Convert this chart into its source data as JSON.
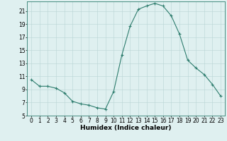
{
  "x": [
    0,
    1,
    2,
    3,
    4,
    5,
    6,
    7,
    8,
    9,
    10,
    11,
    12,
    13,
    14,
    15,
    16,
    17,
    18,
    19,
    20,
    21,
    22,
    23
  ],
  "y": [
    10.5,
    9.5,
    9.5,
    9.2,
    8.5,
    7.2,
    6.8,
    6.6,
    6.2,
    6.0,
    8.7,
    14.3,
    18.7,
    21.3,
    21.8,
    22.2,
    21.8,
    20.3,
    17.5,
    13.5,
    12.3,
    11.3,
    9.8,
    8.0
  ],
  "line_color": "#2e7d6e",
  "marker": "+",
  "marker_size": 3,
  "marker_lw": 0.8,
  "line_width": 0.8,
  "bg_color": "#dff0f0",
  "grid_color": "#b8d4d4",
  "xlabel": "Humidex (Indice chaleur)",
  "xlim": [
    -0.5,
    23.5
  ],
  "ylim": [
    5,
    22.5
  ],
  "yticks": [
    5,
    7,
    9,
    11,
    13,
    15,
    17,
    19,
    21
  ],
  "xticks": [
    0,
    1,
    2,
    3,
    4,
    5,
    6,
    7,
    8,
    9,
    10,
    11,
    12,
    13,
    14,
    15,
    16,
    17,
    18,
    19,
    20,
    21,
    22,
    23
  ],
  "xlabel_fontsize": 6.5,
  "tick_fontsize": 5.5,
  "spine_color": "#2e7d6e"
}
